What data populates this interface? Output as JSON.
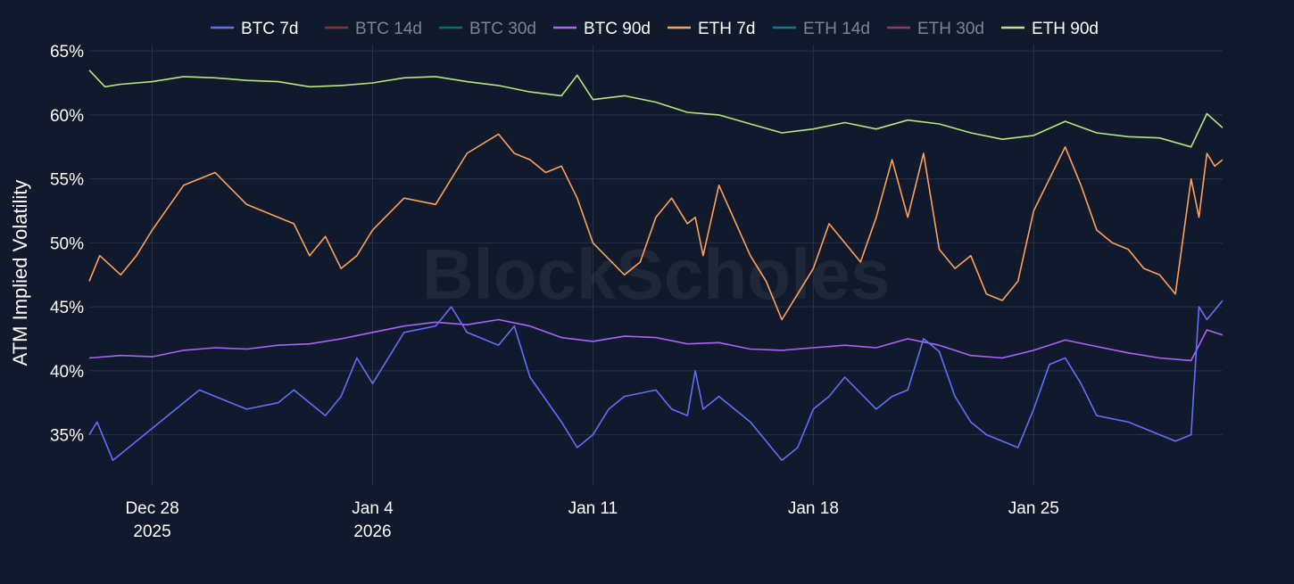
{
  "chart_data": {
    "type": "line",
    "ylabel": "ATM Implied Volatility",
    "watermark": "BlockScholes",
    "y_unit": "%",
    "ylim": [
      31.0,
      65.5
    ],
    "yticks": [
      35,
      40,
      45,
      50,
      55,
      60,
      65
    ],
    "ytick_labels": [
      "35%",
      "40%",
      "45%",
      "50%",
      "55%",
      "60%",
      "65%"
    ],
    "xlim": [
      "2025-12-26",
      "2026-01-31"
    ],
    "xticks": [
      {
        "date": "2025-12-28",
        "label": [
          "Dec 28",
          "2025"
        ]
      },
      {
        "date": "2026-01-04",
        "label": [
          "Jan 4",
          "2026"
        ]
      },
      {
        "date": "2026-01-11",
        "label": [
          "Jan 11"
        ]
      },
      {
        "date": "2026-01-18",
        "label": [
          "Jan 18"
        ]
      },
      {
        "date": "2026-01-25",
        "label": [
          "Jan 25"
        ]
      }
    ],
    "grid": true,
    "legend_position": "top-center",
    "legend": [
      {
        "name": "BTC 7d",
        "color": "#636efa",
        "visible": true
      },
      {
        "name": "BTC 14d",
        "color": "#ef553b",
        "visible": false
      },
      {
        "name": "BTC 30d",
        "color": "#00cc96",
        "visible": false
      },
      {
        "name": "BTC 90d",
        "color": "#ab63fa",
        "visible": true
      },
      {
        "name": "ETH 7d",
        "color": "#ffa15a",
        "visible": true
      },
      {
        "name": "ETH 14d",
        "color": "#19d3f3",
        "visible": false
      },
      {
        "name": "ETH 30d",
        "color": "#ff6692",
        "visible": false
      },
      {
        "name": "ETH 90d",
        "color": "#b6e880",
        "visible": true
      }
    ],
    "series": [
      {
        "name": "ETH 90d",
        "color": "#b6e880",
        "x": [
          "2025-12-26",
          "2025-12-26T12:00",
          "2025-12-27",
          "2025-12-28",
          "2025-12-29",
          "2025-12-30",
          "2025-12-31",
          "2026-01-01",
          "2026-01-02",
          "2026-01-03",
          "2026-01-04",
          "2026-01-05",
          "2026-01-06",
          "2026-01-07",
          "2026-01-08",
          "2026-01-09",
          "2026-01-10",
          "2026-01-10T12:00",
          "2026-01-11",
          "2026-01-12",
          "2026-01-13",
          "2026-01-14",
          "2026-01-15",
          "2026-01-16",
          "2026-01-17",
          "2026-01-18",
          "2026-01-19",
          "2026-01-20",
          "2026-01-21",
          "2026-01-22",
          "2026-01-23",
          "2026-01-24",
          "2026-01-25",
          "2026-01-26",
          "2026-01-27",
          "2026-01-28",
          "2026-01-29",
          "2026-01-30",
          "2026-01-30T12:00",
          "2026-01-31"
        ],
        "y": [
          63.5,
          62.2,
          62.4,
          62.6,
          63.0,
          62.9,
          62.7,
          62.6,
          62.2,
          62.3,
          62.5,
          62.9,
          63.0,
          62.6,
          62.3,
          61.8,
          61.5,
          63.1,
          61.2,
          61.5,
          61.0,
          60.2,
          60.0,
          59.3,
          58.6,
          58.9,
          59.4,
          58.9,
          59.6,
          59.3,
          58.6,
          58.1,
          58.4,
          59.5,
          58.6,
          58.3,
          58.2,
          57.5,
          60.1,
          59.0
        ]
      },
      {
        "name": "ETH 7d",
        "color": "#ffa15a",
        "x": [
          "2025-12-26",
          "2025-12-26T08:00",
          "2025-12-27",
          "2025-12-27T12:00",
          "2025-12-28",
          "2025-12-29",
          "2025-12-30",
          "2025-12-31",
          "2026-01-01",
          "2026-01-01T12:00",
          "2026-01-02",
          "2026-01-02T12:00",
          "2026-01-03",
          "2026-01-03T12:00",
          "2026-01-04",
          "2026-01-05",
          "2026-01-06",
          "2026-01-07",
          "2026-01-08",
          "2026-01-08T12:00",
          "2026-01-09",
          "2026-01-09T12:00",
          "2026-01-10",
          "2026-01-10T12:00",
          "2026-01-11",
          "2026-01-12",
          "2026-01-12T12:00",
          "2026-01-13",
          "2026-01-13T12:00",
          "2026-01-14",
          "2026-01-14T06:00",
          "2026-01-14T12:00",
          "2026-01-15",
          "2026-01-16",
          "2026-01-16T12:00",
          "2026-01-17",
          "2026-01-17T12:00",
          "2026-01-18",
          "2026-01-18T12:00",
          "2026-01-19",
          "2026-01-19T12:00",
          "2026-01-20",
          "2026-01-20T12:00",
          "2026-01-21",
          "2026-01-21T12:00",
          "2026-01-22",
          "2026-01-22T12:00",
          "2026-01-23",
          "2026-01-23T12:00",
          "2026-01-24",
          "2026-01-24T12:00",
          "2026-01-25",
          "2026-01-26",
          "2026-01-26T12:00",
          "2026-01-27",
          "2026-01-27T12:00",
          "2026-01-28",
          "2026-01-28T12:00",
          "2026-01-29",
          "2026-01-29T12:00",
          "2026-01-30",
          "2026-01-30T06:00",
          "2026-01-30T12:00",
          "2026-01-30T18:00",
          "2026-01-31"
        ],
        "y": [
          47.0,
          49.0,
          47.5,
          49.0,
          51.0,
          54.5,
          55.5,
          53.0,
          52.0,
          51.5,
          49.0,
          50.5,
          48.0,
          49.0,
          51.0,
          53.5,
          53.0,
          57.0,
          58.5,
          57.0,
          56.5,
          55.5,
          56.0,
          53.5,
          50.0,
          47.5,
          48.5,
          52.0,
          53.5,
          51.5,
          52.0,
          49.0,
          54.5,
          49.0,
          47.0,
          44.0,
          46.0,
          48.0,
          51.5,
          50.0,
          48.5,
          52.0,
          56.5,
          52.0,
          57.0,
          49.5,
          48.0,
          49.0,
          46.0,
          45.5,
          47.0,
          52.5,
          57.5,
          54.5,
          51.0,
          50.0,
          49.5,
          48.0,
          47.5,
          46.0,
          55.0,
          52.0,
          57.0,
          56.0,
          56.5
        ]
      },
      {
        "name": "BTC 90d",
        "color": "#ab63fa",
        "x": [
          "2025-12-26",
          "2025-12-27",
          "2025-12-28",
          "2025-12-29",
          "2025-12-30",
          "2025-12-31",
          "2026-01-01",
          "2026-01-02",
          "2026-01-03",
          "2026-01-04",
          "2026-01-05",
          "2026-01-06",
          "2026-01-07",
          "2026-01-08",
          "2026-01-09",
          "2026-01-10",
          "2026-01-11",
          "2026-01-12",
          "2026-01-13",
          "2026-01-14",
          "2026-01-15",
          "2026-01-16",
          "2026-01-17",
          "2026-01-18",
          "2026-01-19",
          "2026-01-20",
          "2026-01-21",
          "2026-01-22",
          "2026-01-23",
          "2026-01-24",
          "2026-01-25",
          "2026-01-26",
          "2026-01-27",
          "2026-01-28",
          "2026-01-29",
          "2026-01-30",
          "2026-01-30T12:00",
          "2026-01-31"
        ],
        "y": [
          41.0,
          41.2,
          41.1,
          41.6,
          41.8,
          41.7,
          42.0,
          42.1,
          42.5,
          43.0,
          43.5,
          43.8,
          43.6,
          44.0,
          43.5,
          42.6,
          42.3,
          42.7,
          42.6,
          42.1,
          42.2,
          41.7,
          41.6,
          41.8,
          42.0,
          41.8,
          42.5,
          42.0,
          41.2,
          41.0,
          41.6,
          42.4,
          41.9,
          41.4,
          41.0,
          40.8,
          43.2,
          42.8
        ]
      },
      {
        "name": "BTC 7d",
        "color": "#636efa",
        "x": [
          "2025-12-26",
          "2025-12-26T06:00",
          "2025-12-26T18:00",
          "2025-12-27",
          "2025-12-28",
          "2025-12-29",
          "2025-12-29T12:00",
          "2025-12-30",
          "2025-12-31",
          "2026-01-01",
          "2026-01-01T12:00",
          "2026-01-02",
          "2026-01-02T12:00",
          "2026-01-03",
          "2026-01-03T12:00",
          "2026-01-04",
          "2026-01-05",
          "2026-01-06",
          "2026-01-06T12:00",
          "2026-01-07",
          "2026-01-08",
          "2026-01-08T12:00",
          "2026-01-09",
          "2026-01-10",
          "2026-01-10T12:00",
          "2026-01-11",
          "2026-01-11T12:00",
          "2026-01-12",
          "2026-01-13",
          "2026-01-13T12:00",
          "2026-01-14",
          "2026-01-14T06:00",
          "2026-01-14T12:00",
          "2026-01-15",
          "2026-01-16",
          "2026-01-16T12:00",
          "2026-01-17",
          "2026-01-17T12:00",
          "2026-01-18",
          "2026-01-18T12:00",
          "2026-01-19",
          "2026-01-20",
          "2026-01-20T12:00",
          "2026-01-21",
          "2026-01-21T12:00",
          "2026-01-22",
          "2026-01-22T12:00",
          "2026-01-23",
          "2026-01-23T12:00",
          "2026-01-24",
          "2026-01-24T12:00",
          "2026-01-25",
          "2026-01-25T12:00",
          "2026-01-26",
          "2026-01-26T12:00",
          "2026-01-27",
          "2026-01-28",
          "2026-01-28T12:00",
          "2026-01-29",
          "2026-01-29T12:00",
          "2026-01-30",
          "2026-01-30T06:00",
          "2026-01-30T12:00",
          "2026-01-31"
        ],
        "y": [
          35.0,
          36.0,
          33.0,
          33.5,
          35.5,
          37.5,
          38.5,
          38.0,
          37.0,
          37.5,
          38.5,
          37.5,
          36.5,
          38.0,
          41.0,
          39.0,
          43.0,
          43.5,
          45.0,
          43.0,
          42.0,
          43.5,
          39.5,
          36.0,
          34.0,
          35.0,
          37.0,
          38.0,
          38.5,
          37.0,
          36.5,
          40.0,
          37.0,
          38.0,
          36.0,
          34.5,
          33.0,
          34.0,
          37.0,
          38.0,
          39.5,
          37.0,
          38.0,
          38.5,
          42.5,
          41.5,
          38.0,
          36.0,
          35.0,
          34.5,
          34.0,
          37.0,
          40.5,
          41.0,
          39.0,
          36.5,
          36.0,
          35.5,
          35.0,
          34.5,
          35.0,
          45.0,
          44.0,
          45.5
        ]
      }
    ]
  }
}
